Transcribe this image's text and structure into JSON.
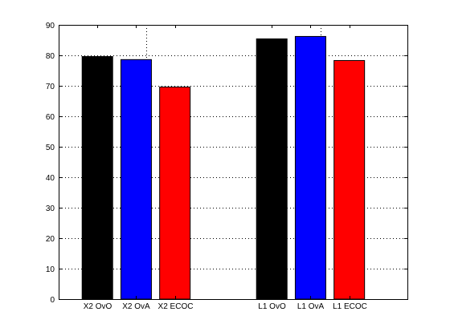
{
  "chart_data": {
    "type": "bar",
    "title": "",
    "xlabel": "",
    "ylabel": "",
    "categories": [
      "X2 OvO",
      "X2 OvA",
      "X2 ECOC",
      "L1 OvO",
      "L1 OvA",
      "L1 ECOC"
    ],
    "x": [
      1,
      2,
      3,
      5.5,
      6.5,
      7.5
    ],
    "xlim": [
      0,
      9
    ],
    "x_gridlines": [
      2.25,
      6.75
    ],
    "values": [
      79.6,
      78.6,
      69.6,
      85.4,
      86.2,
      78.3
    ],
    "bar_colors": [
      "#000000",
      "#0000ff",
      "#ff0000",
      "#000000",
      "#0000ff",
      "#ff0000"
    ],
    "ylim": [
      0,
      90
    ],
    "yticks": [
      0,
      10,
      20,
      30,
      40,
      50,
      60,
      70,
      80,
      90
    ],
    "grid": "dotted",
    "legend": "none"
  }
}
